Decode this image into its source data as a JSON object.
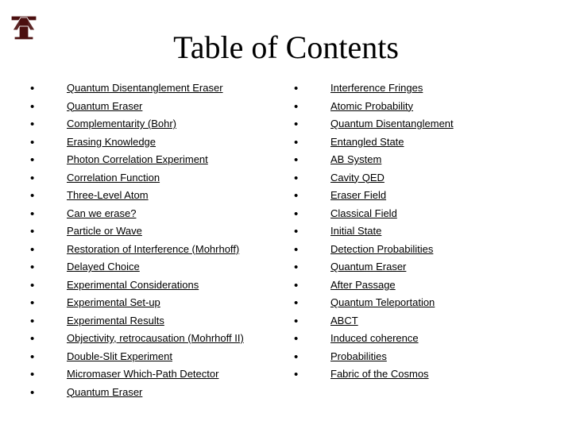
{
  "title": "Table of Contents",
  "logo": {
    "bg_color": "#ffffff",
    "border_color": "#5a0a0a",
    "text_fill": "#4b0f0f",
    "text_outline": "#ffffff",
    "label": "ATM"
  },
  "left_column": [
    "Quantum Disentanglement Eraser",
    "Quantum Eraser",
    "Complementarity (Bohr)",
    "Erasing Knowledge",
    "Photon Correlation Experiment",
    "Correlation Function",
    "Three-Level Atom",
    "Can we erase?",
    "Particle or Wave",
    "Restoration of Interference (Mohrhoff)",
    "Delayed Choice",
    "Experimental Considerations",
    "Experimental Set-up",
    "Experimental Results",
    "Objectivity, retrocausation (Mohrhoff II)",
    "Double-Slit Experiment",
    "Micromaser Which-Path Detector",
    "Quantum Eraser"
  ],
  "right_column": [
    "Interference Fringes",
    "Atomic Probability",
    "Quantum Disentanglement",
    "Entangled State",
    "AB System",
    "Cavity QED",
    "Eraser Field",
    "Classical Field",
    "Initial State",
    "Detection Probabilities",
    "Quantum Eraser",
    "After Passage",
    "Quantum Teleportation",
    "ABCT",
    "Induced coherence",
    "Probabilities",
    "Fabric of the Cosmos"
  ],
  "style": {
    "body_bg": "#ffffff",
    "title_color": "#000000",
    "title_fontsize": 40,
    "link_fontsize": 13,
    "link_color": "#000000",
    "bullet_char": "•"
  }
}
